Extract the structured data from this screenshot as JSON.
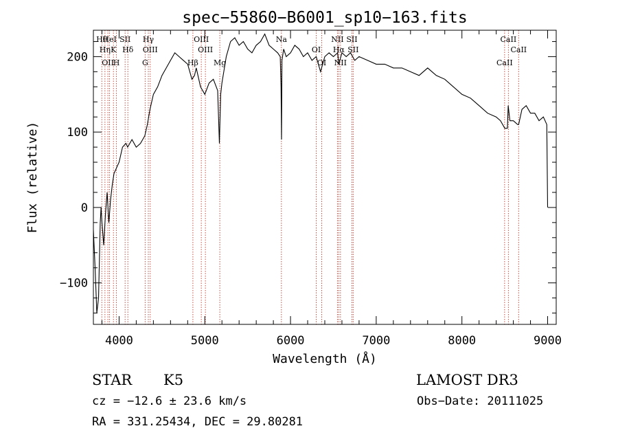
{
  "chart_data": {
    "type": "line",
    "title": "spec−55860−B6001_sp10−163.fits",
    "xlabel": "Wavelength (Å)",
    "ylabel": "Flux (relative)",
    "xlim": [
      3700,
      9100
    ],
    "ylim": [
      -155,
      235
    ],
    "x_ticks": [
      4000,
      5000,
      6000,
      7000,
      8000,
      9000
    ],
    "x_tick_labels": [
      "4000",
      "5000",
      "6000",
      "7000",
      "8000",
      "9000"
    ],
    "y_ticks": [
      -100,
      0,
      100,
      200
    ],
    "y_tick_labels": [
      "−100",
      "0",
      "100",
      "200"
    ],
    "grid": false,
    "series": [
      {
        "x": [
          3700,
          3720,
          3740,
          3760,
          3780,
          3790,
          3800,
          3820,
          3840,
          3860,
          3880,
          3900,
          3920,
          3940,
          3960,
          3980,
          4000,
          4040,
          4080,
          4100,
          4150,
          4200,
          4250,
          4300,
          4330,
          4360,
          4400,
          4450,
          4500,
          4550,
          4600,
          4650,
          4700,
          4750,
          4800,
          4850,
          4880,
          4900,
          4950,
          5000,
          5050,
          5100,
          5150,
          5170,
          5185,
          5200,
          5250,
          5300,
          5350,
          5400,
          5450,
          5500,
          5550,
          5600,
          5650,
          5700,
          5750,
          5800,
          5850,
          5880,
          5890,
          5895,
          5900,
          5920,
          5950,
          6000,
          6050,
          6100,
          6150,
          6200,
          6250,
          6300,
          6350,
          6400,
          6450,
          6500,
          6550,
          6563,
          6600,
          6650,
          6700,
          6750,
          6800,
          6900,
          7000,
          7100,
          7200,
          7300,
          7400,
          7500,
          7600,
          7700,
          7800,
          7900,
          8000,
          8100,
          8200,
          8300,
          8400,
          8450,
          8500,
          8530,
          8540,
          8560,
          8600,
          8650,
          8662,
          8700,
          8750,
          8800,
          8850,
          8900,
          8950,
          8990,
          9000
        ],
        "values": [
          -30,
          -80,
          -140,
          -120,
          -20,
          0,
          -20,
          -50,
          -10,
          20,
          -20,
          10,
          30,
          45,
          50,
          55,
          60,
          80,
          85,
          80,
          90,
          80,
          85,
          95,
          110,
          130,
          150,
          160,
          175,
          185,
          195,
          205,
          200,
          195,
          190,
          170,
          175,
          185,
          160,
          150,
          165,
          170,
          155,
          85,
          150,
          165,
          200,
          220,
          225,
          215,
          220,
          210,
          205,
          215,
          220,
          230,
          215,
          210,
          205,
          200,
          160,
          90,
          195,
          210,
          200,
          205,
          215,
          210,
          200,
          205,
          195,
          200,
          180,
          200,
          205,
          200,
          205,
          190,
          205,
          200,
          205,
          195,
          200,
          195,
          190,
          190,
          185,
          185,
          180,
          175,
          185,
          175,
          170,
          160,
          150,
          145,
          135,
          125,
          120,
          115,
          105,
          105,
          135,
          115,
          115,
          110,
          110,
          130,
          135,
          125,
          125,
          115,
          120,
          110,
          0
        ]
      }
    ],
    "lines": [
      {
        "x": 3798,
        "labels": [
          "Hθ"
        ]
      },
      {
        "x": 3835,
        "labels": [
          "Hη"
        ]
      },
      {
        "x": 3869,
        "labels": [
          "OII"
        ]
      },
      {
        "x": 3889,
        "labels": [
          "HeI"
        ]
      },
      {
        "x": 3934,
        "labels": [
          "K"
        ]
      },
      {
        "x": 3969,
        "labels": [
          "H"
        ]
      },
      {
        "x": 4070,
        "labels": [
          "SII"
        ]
      },
      {
        "x": 4102,
        "labels": [
          "Hδ"
        ]
      },
      {
        "x": 4304,
        "labels": [
          "G"
        ]
      },
      {
        "x": 4341,
        "labels": [
          "Hγ"
        ]
      },
      {
        "x": 4363,
        "labels": [
          "OIII"
        ]
      },
      {
        "x": 4861,
        "labels": [
          "Hβ"
        ]
      },
      {
        "x": 4959,
        "labels": [
          "OIII"
        ]
      },
      {
        "x": 5007,
        "labels": [
          "OIII"
        ]
      },
      {
        "x": 5175,
        "labels": [
          "Mg"
        ]
      },
      {
        "x": 5894,
        "labels": [
          "Na"
        ]
      },
      {
        "x": 6300,
        "labels": [
          "OI"
        ]
      },
      {
        "x": 6364,
        "labels": [
          "OI"
        ]
      },
      {
        "x": 6548,
        "labels": [
          "NII"
        ]
      },
      {
        "x": 6563,
        "labels": [
          "Hα"
        ]
      },
      {
        "x": 6583,
        "labels": [
          "NII"
        ]
      },
      {
        "x": 6716,
        "labels": [
          "SII"
        ]
      },
      {
        "x": 6731,
        "labels": [
          "SII"
        ]
      },
      {
        "x": 8498,
        "labels": [
          "CaII"
        ]
      },
      {
        "x": 8542,
        "labels": [
          "CaII"
        ]
      },
      {
        "x": 8662,
        "labels": [
          "CaII"
        ]
      }
    ]
  },
  "info": {
    "object_class": "STAR",
    "subclass": "K5",
    "survey": "LAMOST DR3",
    "redshift": "cz = −12.6 ± 23.6 km/s",
    "obs_date": "Obs−Date: 20111025",
    "coordinates": "RA = 331.25434, DEC =  29.80281"
  }
}
